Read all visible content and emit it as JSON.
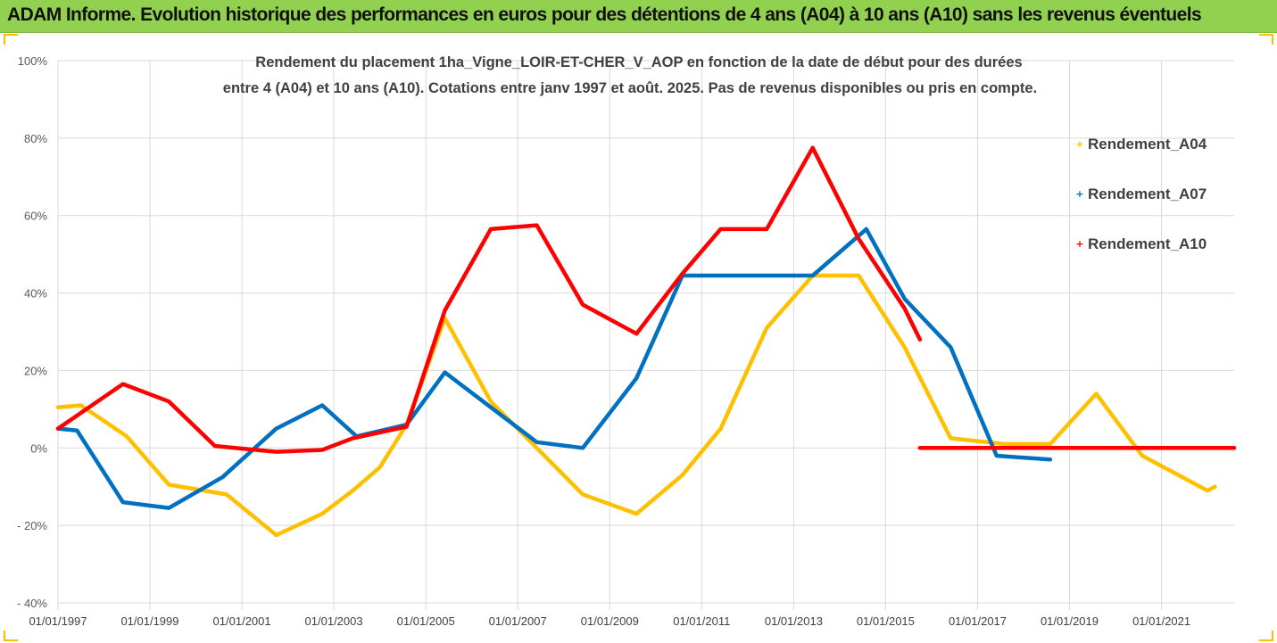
{
  "banner": {
    "title": "ADAM Informe. Evolution historique des performances en euros pour des détentions de 4 ans (A04) à 10 ans (A10) sans les revenus éventuels",
    "color": "#92d050"
  },
  "chart_data": {
    "type": "line",
    "title": "Rendement du placement 1ha_Vigne_LOIR-ET-CHER_V_AOP en fonction de la date de début pour des durées",
    "subtitle": "entre 4 (A04) et 10 ans (A10). Cotations entre janv 1997 et août. 2025. Pas de revenus disponibles ou pris en compte.",
    "xlabel": "",
    "ylabel": "",
    "x_range": [
      "1997-01-01",
      "2022-08-01"
    ],
    "x_ticks": [
      "01/01/1997",
      "01/01/1999",
      "01/01/2001",
      "01/01/2003",
      "01/01/2005",
      "01/01/2007",
      "01/01/2009",
      "01/01/2011",
      "01/01/2013",
      "01/01/2015",
      "01/01/2017",
      "01/01/2019",
      "01/01/2021"
    ],
    "ylim": [
      -40,
      100
    ],
    "y_ticks": [
      100,
      80,
      60,
      40,
      20,
      0,
      -20,
      -40
    ],
    "y_tick_labels": [
      "100%",
      "80%",
      "60%",
      "40%",
      "20%",
      "0%",
      "- 20%",
      "- 40%"
    ],
    "grid": true,
    "legend": "right",
    "series": [
      {
        "name": "Rendement_A04",
        "color": "#ffc000",
        "points": [
          [
            "1997-01-01",
            10.5
          ],
          [
            "1997-07-01",
            11
          ],
          [
            "1998-01-01",
            7
          ],
          [
            "1998-07-01",
            3
          ],
          [
            "1999-06-01",
            -9.5
          ],
          [
            "2000-09-01",
            -12
          ],
          [
            "2001-10-01",
            -22.5
          ],
          [
            "2002-10-01",
            -17
          ],
          [
            "2003-06-01",
            -11
          ],
          [
            "2004-01-01",
            -5
          ],
          [
            "2004-08-01",
            6
          ],
          [
            "2005-06-01",
            33.5
          ],
          [
            "2006-06-01",
            12
          ],
          [
            "2007-06-01",
            0
          ],
          [
            "2008-06-01",
            -12
          ],
          [
            "2009-08-01",
            -17
          ],
          [
            "2010-08-01",
            -7
          ],
          [
            "2011-06-01",
            5
          ],
          [
            "2012-06-01",
            31
          ],
          [
            "2013-06-01",
            44.5
          ],
          [
            "2014-06-01",
            44.5
          ],
          [
            "2015-06-01",
            26
          ],
          [
            "2016-06-01",
            2.5
          ],
          [
            "2017-08-01",
            1
          ],
          [
            "2018-08-01",
            1
          ],
          [
            "2019-08-01",
            14
          ],
          [
            "2020-08-01",
            -2
          ],
          [
            "2022-01-01",
            -11
          ],
          [
            "2022-03-01",
            -10
          ]
        ]
      },
      {
        "name": "Rendement_A07",
        "color": "#0070c0",
        "points": [
          [
            "1997-01-01",
            5
          ],
          [
            "1997-06-01",
            4.5
          ],
          [
            "1998-06-01",
            -14
          ],
          [
            "1999-06-01",
            -15.5
          ],
          [
            "2000-08-01",
            -7.5
          ],
          [
            "2001-10-01",
            5
          ],
          [
            "2002-10-01",
            11
          ],
          [
            "2003-07-01",
            3
          ],
          [
            "2004-08-01",
            6
          ],
          [
            "2005-06-01",
            19.5
          ],
          [
            "2006-06-01",
            10.5
          ],
          [
            "2007-06-01",
            1.5
          ],
          [
            "2008-06-01",
            0
          ],
          [
            "2009-08-01",
            18
          ],
          [
            "2010-08-01",
            44.5
          ],
          [
            "2011-06-01",
            44.5
          ],
          [
            "2013-06-01",
            44.5
          ],
          [
            "2014-08-01",
            56.5
          ],
          [
            "2015-06-01",
            38.5
          ],
          [
            "2016-06-01",
            26
          ],
          [
            "2017-06-01",
            -2
          ],
          [
            "2018-08-01",
            -3
          ]
        ]
      },
      {
        "name": "Rendement_A10",
        "color": "#ff0000",
        "points": [
          [
            "1997-01-01",
            5
          ],
          [
            "1998-06-01",
            16.5
          ],
          [
            "1999-06-01",
            12
          ],
          [
            "2000-06-01",
            0.5
          ],
          [
            "2001-10-01",
            -1
          ],
          [
            "2002-10-01",
            -0.5
          ],
          [
            "2003-06-01",
            2.5
          ],
          [
            "2004-08-01",
            5.5
          ],
          [
            "2005-06-01",
            35.5
          ],
          [
            "2006-06-01",
            56.5
          ],
          [
            "2007-06-01",
            57.5
          ],
          [
            "2008-06-01",
            37
          ],
          [
            "2009-08-01",
            29.5
          ],
          [
            "2010-08-01",
            45
          ],
          [
            "2011-06-01",
            56.5
          ],
          [
            "2012-06-01",
            56.5
          ],
          [
            "2013-06-01",
            77.5
          ],
          [
            "2014-06-01",
            54
          ],
          [
            "2015-06-01",
            36
          ],
          [
            "2015-10-01",
            28
          ]
        ],
        "extra_segment": [
          [
            "2015-10-01",
            0
          ],
          [
            "2022-08-01",
            0
          ]
        ]
      }
    ]
  }
}
